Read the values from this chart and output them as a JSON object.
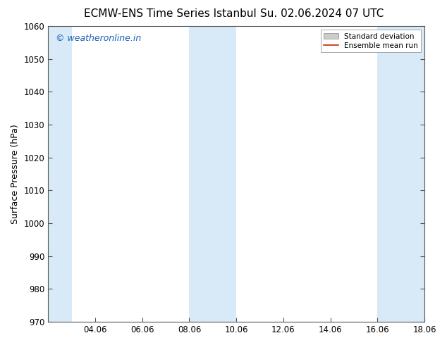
{
  "title_left": "ECMW-ENS Time Series Istanbul",
  "title_right": "Su. 02.06.2024 07 UTC",
  "ylabel": "Surface Pressure (hPa)",
  "ylim": [
    970,
    1060
  ],
  "yticks": [
    970,
    980,
    990,
    1000,
    1010,
    1020,
    1030,
    1040,
    1050,
    1060
  ],
  "xlim": [
    0,
    16
  ],
  "xtick_labels": [
    "04.06",
    "06.06",
    "08.06",
    "10.06",
    "12.06",
    "14.06",
    "16.06",
    "18.06"
  ],
  "xtick_positions": [
    2,
    4,
    6,
    8,
    10,
    12,
    14,
    16
  ],
  "shaded_bands": [
    {
      "x_start": 0.0,
      "x_end": 1.0,
      "color": "#d8eaf7"
    },
    {
      "x_start": 6.0,
      "x_end": 8.0,
      "color": "#d8eaf7"
    },
    {
      "x_start": 14.0,
      "x_end": 16.0,
      "color": "#d8eaf7"
    }
  ],
  "watermark_text": "© weatheronline.in",
  "watermark_color": "#1a5fb4",
  "legend_std_dev_color": "#cccccc",
  "legend_mean_run_color": "#cc2200",
  "background_color": "#ffffff",
  "plot_bg_color": "#ffffff",
  "spine_color": "#555555",
  "title_fontsize": 11,
  "axis_label_fontsize": 9,
  "tick_fontsize": 8.5,
  "watermark_fontsize": 9
}
